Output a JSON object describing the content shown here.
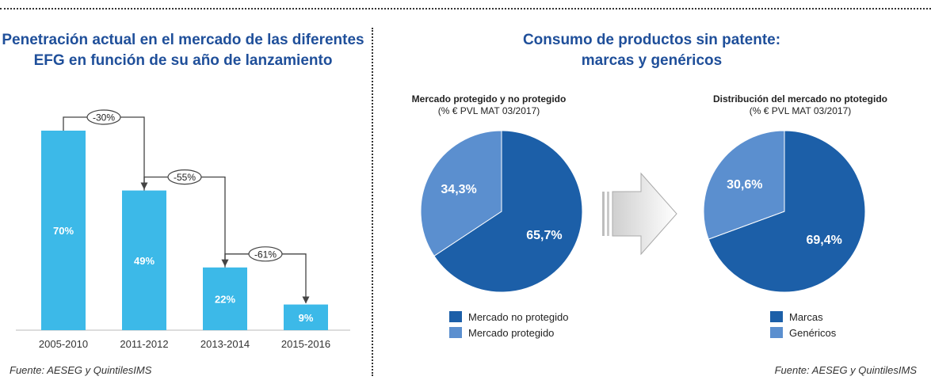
{
  "left": {
    "title_line1": "Penetración actual en el mercado de las diferentes",
    "title_line2": "EFG en función de su año de lanzamiento",
    "source": "Fuente: AESEG y QuintilesIMS"
  },
  "right": {
    "title_line1": "Consumo de productos sin patente:",
    "title_line2": "marcas y genéricos",
    "source": "Fuente: AESEG y QuintilesIMS",
    "pie1_heading": "Mercado protegido y no protegido",
    "pie1_subheading": "(% € PVL MAT 03/2017)",
    "pie2_heading": "Distribución del mercado no ptotegido",
    "pie2_subheading": "(% € PVL MAT 03/2017)",
    "legend1": [
      "Mercado no protegido",
      "Mercado protegido"
    ],
    "legend2": [
      "Marcas",
      "Genéricos"
    ]
  },
  "colors": {
    "bar": "#3cb9e8",
    "dark_blue": "#1c5fa8",
    "light_blue": "#5b8fcf",
    "title": "#1f4f9a"
  },
  "chart_data": [
    {
      "type": "bar",
      "categories": [
        "2005-2010",
        "2011-2012",
        "2013-2014",
        "2015-2016"
      ],
      "values": [
        70,
        49,
        22,
        9
      ],
      "value_labels": [
        "70%",
        "49%",
        "22%",
        "9%"
      ],
      "annotations": [
        "-30%",
        "-55%",
        "-61%"
      ],
      "ylim": [
        0,
        75
      ],
      "grid": false
    },
    {
      "type": "pie",
      "labels": [
        "Mercado no protegido",
        "Mercado protegido"
      ],
      "values": [
        65.7,
        34.3
      ],
      "value_labels": [
        "65,7%",
        "34,3%"
      ],
      "colors": [
        "#1c5fa8",
        "#5b8fcf"
      ]
    },
    {
      "type": "pie",
      "labels": [
        "Marcas",
        "Genéricos"
      ],
      "values": [
        69.4,
        30.6
      ],
      "value_labels": [
        "69,4%",
        "30,6%"
      ],
      "colors": [
        "#1c5fa8",
        "#5b8fcf"
      ]
    }
  ]
}
